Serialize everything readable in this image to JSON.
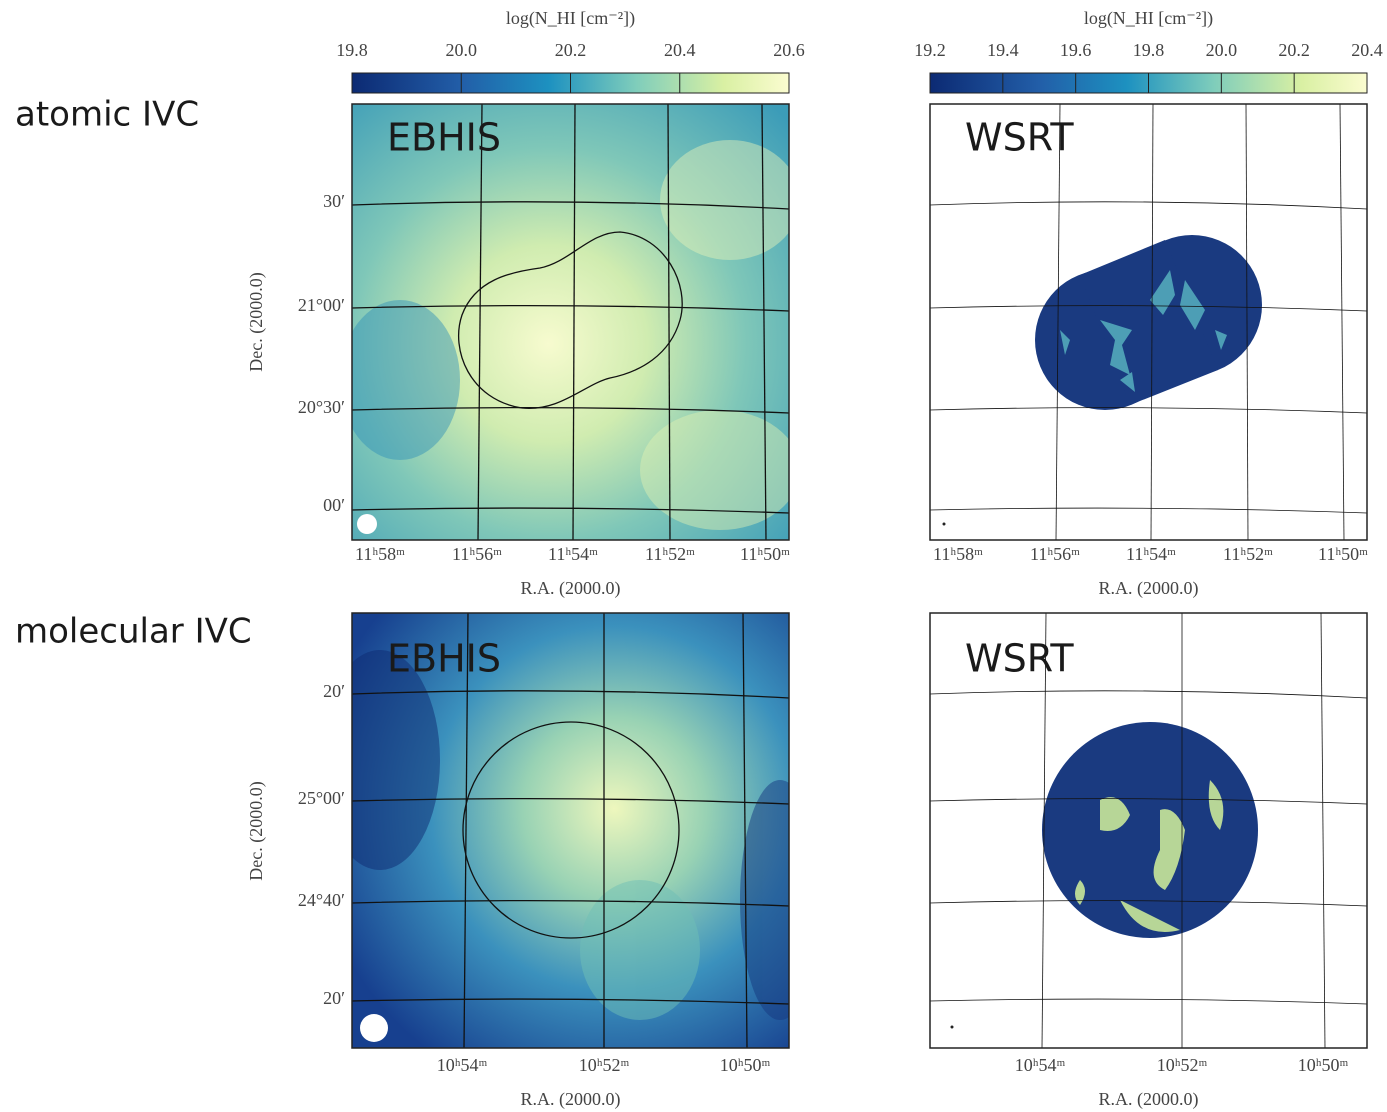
{
  "colorbars": [
    {
      "label": "log(N_HI [cm⁻²])",
      "range": [
        19.8,
        20.6
      ],
      "ticks": [
        19.8,
        {
          "value": 20,
          "label": "20.0"
        },
        20.2,
        20.4,
        20.6
      ]
    },
    {
      "label": "log(N_HI [cm⁻²])",
      "range": [
        19.2,
        20.4
      ],
      "ticks": [
        19.2,
        19.4,
        19.6,
        19.8,
        {
          "value": 20,
          "label": "20.0"
        },
        20.2,
        20.4
      ]
    }
  ],
  "rows": [
    {
      "label": "atomic IVC",
      "ylabel": "Dec. (2000.0)",
      "dec_ticks": [
        "30′",
        "21°00′",
        "20°30′",
        "00′"
      ],
      "panels": [
        {
          "label": "EBHIS",
          "xlabel": "R.A. (2000.0)",
          "ra_ticks": [
            "11ʰ58ᵐ",
            "11ʰ56ᵐ",
            "11ʰ54ᵐ",
            "11ʰ52ᵐ",
            "11ʰ50ᵐ"
          ]
        },
        {
          "label": "WSRT",
          "xlabel": "R.A. (2000.0)",
          "ra_ticks": [
            "11ʰ58ᵐ",
            "11ʰ56ᵐ",
            "11ʰ54ᵐ",
            "11ʰ52ᵐ",
            "11ʰ50ᵐ"
          ]
        }
      ]
    },
    {
      "label": "molecular IVC",
      "ylabel": "Dec. (2000.0)",
      "dec_ticks": [
        "20′",
        "25°00′",
        "24°40′",
        "20′"
      ],
      "panels": [
        {
          "label": "EBHIS",
          "xlabel": "R.A. (2000.0)",
          "ra_ticks": [
            "10ʰ54ᵐ",
            "10ʰ52ᵐ",
            "10ʰ50ᵐ"
          ]
        },
        {
          "label": "WSRT",
          "xlabel": "R.A. (2000.0)",
          "ra_ticks": [
            "10ʰ54ᵐ",
            "10ʰ52ᵐ",
            "10ʰ50ᵐ"
          ]
        }
      ]
    }
  ]
}
